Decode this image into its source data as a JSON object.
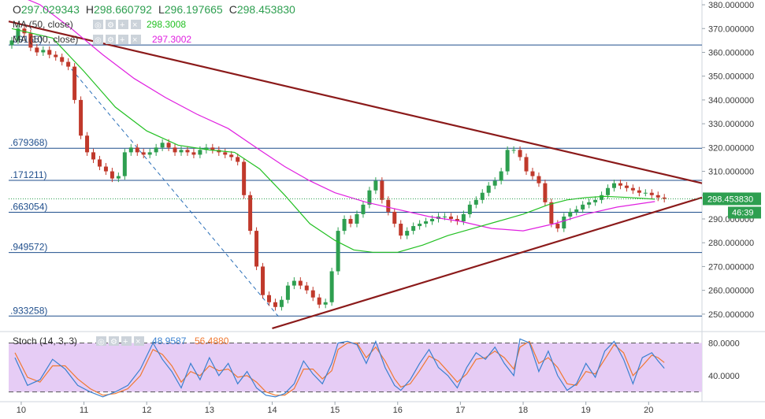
{
  "ohlc": {
    "o_label": "O",
    "o": "297.029343",
    "h_label": "H",
    "h": "298.660792",
    "l_label": "L",
    "l": "296.197665",
    "c_label": "C",
    "c": "298.453830"
  },
  "indicators": {
    "ma50": {
      "label": "MA (50, close)",
      "value": "298.3008",
      "color": "#22c022"
    },
    "ma100": {
      "label": "MA (100, close)",
      "value": "297.3002",
      "color": "#e020e0"
    },
    "stoch": {
      "label": "Stoch (14, 3, 3)",
      "k_value": "48.9587",
      "d_value": "56.4880",
      "k_color": "#3a80d0",
      "d_color": "#f07830"
    }
  },
  "price_tag": {
    "value": "298.453830",
    "countdown": "46:39",
    "color": "#2e9f50"
  },
  "fib_levels": [
    {
      "label": ".09165)",
      "price": 363.1
    },
    {
      "label": ".679368)",
      "price": 319.7
    },
    {
      "label": ".171211)",
      "price": 306.2
    },
    {
      "label": ".663054)",
      "price": 292.8
    },
    {
      "label": ".949572)",
      "price": 275.9
    },
    {
      "label": ".933258)",
      "price": 249.2
    }
  ],
  "colors": {
    "candle_up": "#2e9f50",
    "candle_down": "#c0392b",
    "trendline": "#8b1a1a",
    "fib": "#1f4e8c",
    "stoch_band": "#e6ccf5"
  },
  "chart_data": {
    "type": "candlestick",
    "title": "",
    "price_axis": {
      "ticks": [
        "380.000000",
        "370.000000",
        "360.000000",
        "350.000000",
        "340.000000",
        "330.000000",
        "320.000000",
        "310.000000",
        "300.000000",
        "290.000000",
        "280.000000",
        "270.000000",
        "260.000000",
        "250.000000"
      ],
      "ylim": [
        243,
        382
      ]
    },
    "x_axis": {
      "ticks": [
        "10",
        "11",
        "12",
        "13",
        "14",
        "15",
        "16",
        "17",
        "18",
        "19",
        "20"
      ],
      "xlim": [
        9.8,
        20.85
      ]
    },
    "stoch_axis": {
      "ticks": [
        "80.0000",
        "40.0000"
      ],
      "ylim": [
        10,
        93
      ],
      "band": [
        20,
        80
      ]
    },
    "close_series": {
      "x": [
        9.85,
        9.95,
        10.05,
        10.15,
        10.25,
        10.35,
        10.45,
        10.55,
        10.65,
        10.75,
        10.85,
        10.95,
        11.05,
        11.15,
        11.25,
        11.35,
        11.45,
        11.55,
        11.65,
        11.75,
        11.85,
        11.95,
        12.05,
        12.15,
        12.25,
        12.35,
        12.45,
        12.55,
        12.65,
        12.75,
        12.85,
        12.95,
        13.05,
        13.15,
        13.25,
        13.35,
        13.45,
        13.55,
        13.65,
        13.75,
        13.85,
        13.95,
        14.05,
        14.15,
        14.25,
        14.35,
        14.45,
        14.55,
        14.65,
        14.75,
        14.85,
        14.95,
        15.05,
        15.15,
        15.25,
        15.35,
        15.45,
        15.55,
        15.65,
        15.75,
        15.85,
        15.95,
        16.05,
        16.15,
        16.25,
        16.35,
        16.45,
        16.55,
        16.65,
        16.75,
        16.85,
        16.95,
        17.05,
        17.15,
        17.25,
        17.35,
        17.45,
        17.55,
        17.65,
        17.75,
        17.85,
        17.95,
        18.05,
        18.15,
        18.25,
        18.35,
        18.45,
        18.55,
        18.65,
        18.75,
        18.85,
        18.95,
        19.05,
        19.15,
        19.25,
        19.35,
        19.45,
        19.55,
        19.65,
        19.75,
        19.85,
        19.95,
        20.05,
        20.15,
        20.25
      ],
      "y": [
        365,
        370,
        368,
        362,
        360,
        361,
        359,
        358,
        356,
        354,
        340,
        325,
        318,
        315,
        312,
        310,
        307,
        308,
        318,
        320,
        318,
        317,
        318,
        320,
        322,
        320,
        318,
        319,
        318,
        317,
        319,
        320,
        319,
        318,
        317,
        316,
        314,
        300,
        285,
        270,
        258,
        255,
        253,
        256,
        262,
        264,
        262,
        260,
        257,
        254,
        255,
        268,
        285,
        290,
        288,
        292,
        296,
        302,
        306,
        298,
        293,
        288,
        283,
        285,
        287,
        288,
        289,
        290,
        291,
        291,
        290,
        289,
        292,
        296,
        298,
        301,
        304,
        306,
        310,
        319,
        319,
        316,
        310,
        308,
        305,
        297,
        288,
        286,
        291,
        293,
        294,
        296,
        297,
        298,
        300,
        303,
        305,
        304,
        303,
        302,
        301,
        301,
        300,
        299,
        298.45
      ]
    },
    "ma50": [
      [
        9.85,
        370
      ],
      [
        10.5,
        366
      ],
      [
        11.0,
        352
      ],
      [
        11.5,
        337
      ],
      [
        12.0,
        327
      ],
      [
        12.5,
        321
      ],
      [
        13.0,
        319
      ],
      [
        13.4,
        318
      ],
      [
        13.8,
        311
      ],
      [
        14.2,
        300
      ],
      [
        14.6,
        288
      ],
      [
        15.0,
        281
      ],
      [
        15.3,
        277
      ],
      [
        15.6,
        276
      ],
      [
        16.0,
        276
      ],
      [
        16.4,
        279
      ],
      [
        16.8,
        283
      ],
      [
        17.2,
        286
      ],
      [
        17.6,
        289
      ],
      [
        18.0,
        292
      ],
      [
        18.4,
        296
      ],
      [
        18.7,
        298
      ],
      [
        19.0,
        299
      ],
      [
        19.3,
        299.5
      ],
      [
        19.7,
        299
      ],
      [
        20.1,
        298.3
      ]
    ],
    "ma100": [
      [
        9.85,
        385
      ],
      [
        10.3,
        380
      ],
      [
        10.8,
        370
      ],
      [
        11.3,
        359
      ],
      [
        11.8,
        349
      ],
      [
        12.3,
        341
      ],
      [
        12.8,
        334
      ],
      [
        13.3,
        328
      ],
      [
        13.8,
        319
      ],
      [
        14.2,
        312
      ],
      [
        14.6,
        306
      ],
      [
        15.0,
        301
      ],
      [
        15.5,
        297
      ],
      [
        16.0,
        294
      ],
      [
        16.5,
        291
      ],
      [
        17.0,
        289
      ],
      [
        17.5,
        286
      ],
      [
        18.0,
        285
      ],
      [
        18.5,
        288
      ],
      [
        19.0,
        292
      ],
      [
        19.5,
        295
      ],
      [
        20.1,
        297.3
      ]
    ],
    "trendlines": [
      {
        "from": [
          9.8,
          373
        ],
        "to": [
          20.85,
          305
        ]
      },
      {
        "from": [
          14.0,
          244
        ],
        "to": [
          20.85,
          299
        ]
      },
      {
        "from": [
          10.8,
          353
        ],
        "to": [
          14.1,
          249
        ],
        "style": "dashed"
      }
    ],
    "stoch_k": [
      [
        9.9,
        62
      ],
      [
        10.1,
        28
      ],
      [
        10.3,
        35
      ],
      [
        10.5,
        60
      ],
      [
        10.7,
        48
      ],
      [
        10.9,
        28
      ],
      [
        11.1,
        20
      ],
      [
        11.3,
        14
      ],
      [
        11.5,
        20
      ],
      [
        11.7,
        28
      ],
      [
        11.9,
        48
      ],
      [
        12.1,
        80
      ],
      [
        12.25,
        60
      ],
      [
        12.4,
        45
      ],
      [
        12.55,
        25
      ],
      [
        12.7,
        55
      ],
      [
        12.85,
        35
      ],
      [
        13.0,
        62
      ],
      [
        13.15,
        40
      ],
      [
        13.3,
        55
      ],
      [
        13.45,
        30
      ],
      [
        13.6,
        45
      ],
      [
        13.75,
        25
      ],
      [
        13.9,
        16
      ],
      [
        14.05,
        14
      ],
      [
        14.2,
        18
      ],
      [
        14.35,
        30
      ],
      [
        14.5,
        58
      ],
      [
        14.65,
        42
      ],
      [
        14.8,
        30
      ],
      [
        14.95,
        55
      ],
      [
        15.05,
        80
      ],
      [
        15.2,
        82
      ],
      [
        15.35,
        78
      ],
      [
        15.5,
        55
      ],
      [
        15.65,
        82
      ],
      [
        15.8,
        50
      ],
      [
        15.95,
        28
      ],
      [
        16.05,
        22
      ],
      [
        16.2,
        35
      ],
      [
        16.35,
        55
      ],
      [
        16.5,
        72
      ],
      [
        16.65,
        50
      ],
      [
        16.8,
        40
      ],
      [
        16.95,
        25
      ],
      [
        17.1,
        50
      ],
      [
        17.25,
        68
      ],
      [
        17.4,
        60
      ],
      [
        17.55,
        75
      ],
      [
        17.7,
        55
      ],
      [
        17.85,
        40
      ],
      [
        17.95,
        85
      ],
      [
        18.1,
        80
      ],
      [
        18.25,
        45
      ],
      [
        18.4,
        70
      ],
      [
        18.55,
        40
      ],
      [
        18.7,
        22
      ],
      [
        18.85,
        30
      ],
      [
        19.0,
        55
      ],
      [
        19.15,
        38
      ],
      [
        19.3,
        70
      ],
      [
        19.45,
        82
      ],
      [
        19.6,
        60
      ],
      [
        19.75,
        30
      ],
      [
        19.9,
        62
      ],
      [
        20.05,
        68
      ],
      [
        20.15,
        58
      ],
      [
        20.25,
        49
      ]
    ],
    "stoch_d": [
      [
        9.9,
        68
      ],
      [
        10.1,
        38
      ],
      [
        10.3,
        32
      ],
      [
        10.5,
        52
      ],
      [
        10.7,
        52
      ],
      [
        10.9,
        36
      ],
      [
        11.1,
        24
      ],
      [
        11.3,
        16
      ],
      [
        11.5,
        18
      ],
      [
        11.7,
        24
      ],
      [
        11.9,
        40
      ],
      [
        12.1,
        72
      ],
      [
        12.25,
        66
      ],
      [
        12.4,
        52
      ],
      [
        12.55,
        32
      ],
      [
        12.7,
        45
      ],
      [
        12.85,
        40
      ],
      [
        13.0,
        52
      ],
      [
        13.15,
        46
      ],
      [
        13.3,
        48
      ],
      [
        13.45,
        38
      ],
      [
        13.6,
        40
      ],
      [
        13.75,
        32
      ],
      [
        13.9,
        20
      ],
      [
        14.05,
        16
      ],
      [
        14.2,
        16
      ],
      [
        14.35,
        24
      ],
      [
        14.5,
        48
      ],
      [
        14.65,
        48
      ],
      [
        14.8,
        36
      ],
      [
        14.95,
        46
      ],
      [
        15.05,
        72
      ],
      [
        15.2,
        80
      ],
      [
        15.35,
        80
      ],
      [
        15.5,
        62
      ],
      [
        15.65,
        75
      ],
      [
        15.8,
        58
      ],
      [
        15.95,
        36
      ],
      [
        16.05,
        26
      ],
      [
        16.2,
        30
      ],
      [
        16.35,
        46
      ],
      [
        16.5,
        64
      ],
      [
        16.65,
        58
      ],
      [
        16.8,
        45
      ],
      [
        16.95,
        32
      ],
      [
        17.1,
        42
      ],
      [
        17.25,
        60
      ],
      [
        17.4,
        62
      ],
      [
        17.55,
        70
      ],
      [
        17.7,
        62
      ],
      [
        17.85,
        48
      ],
      [
        17.95,
        75
      ],
      [
        18.1,
        82
      ],
      [
        18.25,
        55
      ],
      [
        18.4,
        62
      ],
      [
        18.55,
        50
      ],
      [
        18.7,
        30
      ],
      [
        18.85,
        28
      ],
      [
        19.0,
        45
      ],
      [
        19.15,
        42
      ],
      [
        19.3,
        60
      ],
      [
        19.45,
        78
      ],
      [
        19.6,
        68
      ],
      [
        19.75,
        40
      ],
      [
        19.9,
        52
      ],
      [
        20.05,
        65
      ],
      [
        20.15,
        62
      ],
      [
        20.25,
        56
      ]
    ]
  }
}
